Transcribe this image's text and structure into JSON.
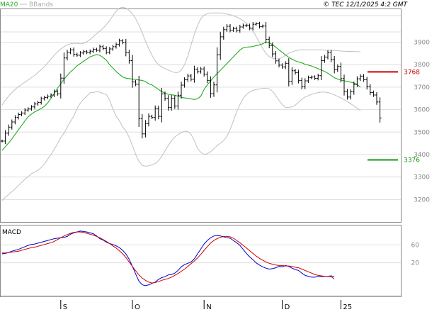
{
  "header": {
    "legend": [
      {
        "label": "MA20",
        "color": "#22aa22"
      },
      {
        "label": "BBands",
        "color": "#bbbbbb"
      }
    ],
    "copyright": "© TEC 12/1/2025 4:2 GMT"
  },
  "colors": {
    "price_bar": "#000000",
    "ma20": "#22aa22",
    "bbands": "#c0c0c0",
    "grid": "#dddddd",
    "resistance": "#cc0000",
    "support": "#119911",
    "macd_line": "#0000cc",
    "signal_line": "#cc0000"
  },
  "chart_data": [
    {
      "type": "line",
      "panel": "price",
      "title": "",
      "xlabel": "",
      "ylabel": "",
      "ylim": [
        3100,
        4050
      ],
      "yticks": [
        3200,
        3300,
        3400,
        3500,
        3600,
        3700,
        3800,
        3900
      ],
      "ytick_labels": [
        "3200",
        "3300",
        "3400",
        "3500",
        "3600",
        "3700",
        "3800",
        "3900"
      ],
      "grid": true,
      "x_axis_labels": [
        {
          "label": "S",
          "index": 18
        },
        {
          "label": "O",
          "index": 40
        },
        {
          "label": "N",
          "index": 62
        },
        {
          "label": "D",
          "index": 86
        },
        {
          "label": "25",
          "index": 104
        }
      ],
      "series": [
        {
          "name": "MA20",
          "role": "ma20",
          "values": [
            3418,
            3435,
            3452,
            3470,
            3490,
            3510,
            3530,
            3550,
            3568,
            3580,
            3590,
            3597,
            3605,
            3615,
            3630,
            3650,
            3672,
            3695,
            3715,
            3735,
            3752,
            3768,
            3780,
            3795,
            3805,
            3815,
            3825,
            3835,
            3840,
            3845,
            3842,
            3832,
            3820,
            3800,
            3785,
            3770,
            3757,
            3745,
            3740,
            3738,
            3736,
            3734,
            3732,
            3730,
            3725,
            3715,
            3710,
            3700,
            3690,
            3680,
            3673,
            3668,
            3666,
            3664,
            3660,
            3655,
            3652,
            3650,
            3648,
            3645,
            3648,
            3660,
            3690,
            3710,
            3728,
            3745,
            3760,
            3775,
            3790,
            3805,
            3820,
            3835,
            3850,
            3865,
            3875,
            3878,
            3879,
            3881,
            3885,
            3888,
            3893,
            3901,
            3898,
            3889,
            3878,
            3866,
            3855,
            3843,
            3833,
            3824,
            3817,
            3812,
            3808,
            3802,
            3798,
            3794,
            3788,
            3782,
            3776,
            3770,
            3762,
            3752,
            3742,
            3736,
            3731,
            3728,
            3726,
            3722,
            3718,
            3712,
            3700
          ]
        },
        {
          "name": "BBands",
          "role": "bb_upper",
          "values": [
            3620,
            3642,
            3660,
            3676,
            3690,
            3702,
            3712,
            3722,
            3732,
            3742,
            3752,
            3765,
            3778,
            3792,
            3808,
            3825,
            3842,
            3857,
            3870,
            3880,
            3888,
            3893,
            3895,
            3895,
            3893,
            3895,
            3902,
            3912,
            3925,
            3938,
            3950,
            3962,
            3978,
            3996,
            4018,
            4038,
            4052,
            4056,
            4052,
            4042,
            4026,
            4005,
            3976,
            3942,
            3905,
            3872,
            3842,
            3817,
            3800,
            3790,
            3782,
            3776,
            3770,
            3765,
            3765,
            3775,
            3800,
            3838,
            3888,
            3935,
            3975,
            4005,
            4020,
            4028,
            4030,
            4030,
            4030,
            4030,
            4028,
            4025,
            4022,
            4018,
            4012,
            4005,
            3996,
            3985,
            3970,
            3950,
            3925,
            3898,
            3872,
            3850,
            3836,
            3829,
            3826,
            3826,
            3832,
            3842,
            3851,
            3857,
            3862,
            3865,
            3866,
            3866,
            3866,
            3866,
            3866,
            3866,
            3866,
            3865,
            3864,
            3864,
            3863,
            3862,
            3861,
            3860,
            3859,
            3859,
            3858,
            3858,
            3857
          ]
        },
        {
          "name": "",
          "role": "bb_lower",
          "values": [
            3195,
            3210,
            3222,
            3235,
            3248,
            3262,
            3276,
            3290,
            3302,
            3315,
            3322,
            3330,
            3342,
            3358,
            3380,
            3400,
            3423,
            3448,
            3475,
            3495,
            3522,
            3548,
            3571,
            3605,
            3629,
            3647,
            3660,
            3675,
            3676,
            3680,
            3678,
            3672,
            3668,
            3642,
            3603,
            3570,
            3551,
            3523,
            3506,
            3477,
            3440,
            3400,
            3370,
            3352,
            3348,
            3350,
            3354,
            3360,
            3372,
            3392,
            3416,
            3440,
            3462,
            3478,
            3489,
            3498,
            3504,
            3502,
            3490,
            3462,
            3427,
            3410,
            3401,
            3404,
            3412,
            3426,
            3440,
            3450,
            3462,
            3480,
            3512,
            3550,
            3590,
            3622,
            3650,
            3668,
            3678,
            3685,
            3690,
            3692,
            3694,
            3696,
            3692,
            3682,
            3662,
            3642,
            3622,
            3610,
            3610,
            3612,
            3620,
            3632,
            3646,
            3656,
            3662,
            3668,
            3672,
            3676,
            3678,
            3678,
            3676,
            3672,
            3666,
            3659,
            3652,
            3644,
            3636,
            3626,
            3616,
            3606,
            3596
          ]
        }
      ],
      "ohlc_close": [
        3460,
        3495,
        3522,
        3545,
        3565,
        3578,
        3585,
        3598,
        3603,
        3612,
        3625,
        3632,
        3648,
        3654,
        3660,
        3665,
        3680,
        3670,
        3740,
        3830,
        3855,
        3866,
        3846,
        3842,
        3852,
        3858,
        3854,
        3860,
        3868,
        3864,
        3880,
        3872,
        3856,
        3870,
        3880,
        3890,
        3906,
        3899,
        3853,
        3818,
        3723,
        3713,
        3560,
        3492,
        3538,
        3570,
        3565,
        3604,
        3570,
        3670,
        3650,
        3610,
        3650,
        3616,
        3664,
        3709,
        3733,
        3750,
        3735,
        3780,
        3769,
        3781,
        3758,
        3730,
        3671,
        3710,
        3844,
        3924,
        3956,
        3971,
        3954,
        3961,
        3952,
        3968,
        3975,
        3974,
        3962,
        3980,
        3982,
        3970,
        3972,
        3913,
        3885,
        3848,
        3817,
        3798,
        3790,
        3806,
        3726,
        3773,
        3764,
        3730,
        3702,
        3728,
        3742,
        3745,
        3739,
        3751,
        3818,
        3834,
        3854,
        3823,
        3777,
        3792,
        3738,
        3681,
        3656,
        3679,
        3712,
        3737,
        3749,
        3733,
        3702,
        3676,
        3665,
        3634,
        3563
      ],
      "levels": [
        {
          "label": "3768",
          "value": 3768,
          "role": "resistance"
        },
        {
          "label": "3376",
          "value": 3376,
          "role": "support"
        }
      ]
    },
    {
      "type": "line",
      "panel": "macd",
      "title": "MACD",
      "xlabel": "",
      "ylabel": "",
      "ylim": [
        -55,
        105
      ],
      "yticks": [
        20,
        60
      ],
      "ytick_labels": [
        "20",
        "60"
      ],
      "grid": true,
      "series": [
        {
          "name": "",
          "role": "macd",
          "values": [
            40,
            41,
            43,
            46,
            48,
            50,
            53,
            56,
            59,
            61,
            62,
            64,
            66,
            68,
            70,
            72,
            74,
            75,
            76,
            77,
            79,
            84,
            87,
            89,
            91,
            90,
            89,
            87,
            85,
            80,
            74,
            71,
            66,
            63,
            61,
            58,
            54,
            48,
            40,
            28,
            12,
            -5,
            -21,
            -29,
            -31,
            -29,
            -26,
            -23,
            -17,
            -13,
            -11,
            -7,
            -6,
            -3,
            3,
            11,
            16,
            19,
            22,
            29,
            40,
            51,
            62,
            70,
            76,
            80,
            81,
            80,
            78,
            76,
            75,
            70,
            65,
            59,
            50,
            41,
            33,
            27,
            20,
            15,
            11,
            8,
            6,
            7,
            9,
            12,
            11,
            14,
            12,
            8,
            5,
            3,
            -3,
            -8,
            -10,
            -12,
            -12,
            -10,
            -11,
            -10,
            -10,
            -9,
            -11
          ]
        },
        {
          "name": "",
          "role": "signal",
          "values": [
            42,
            42,
            43,
            44,
            45,
            46,
            48,
            50,
            52,
            54,
            55,
            57,
            59,
            61,
            63,
            65,
            68,
            72,
            76,
            80,
            83,
            86,
            88,
            89,
            89,
            88,
            86,
            84,
            82,
            79,
            76,
            72,
            68,
            63,
            58,
            53,
            47,
            40,
            32,
            22,
            12,
            2,
            -7,
            -14,
            -19,
            -23,
            -25,
            -24,
            -22,
            -19,
            -17,
            -15,
            -12,
            -8,
            -4,
            1,
            6,
            12,
            18,
            24,
            31,
            39,
            48,
            56,
            64,
            70,
            74,
            77,
            79,
            79,
            78,
            75,
            70,
            65,
            59,
            53,
            47,
            41,
            35,
            30,
            26,
            22,
            19,
            17,
            15,
            14,
            14,
            13,
            13,
            12,
            10,
            9,
            6,
            3,
            0,
            -3,
            -6,
            -8,
            -9,
            -10,
            -10,
            -11,
            -16
          ]
        }
      ]
    }
  ]
}
